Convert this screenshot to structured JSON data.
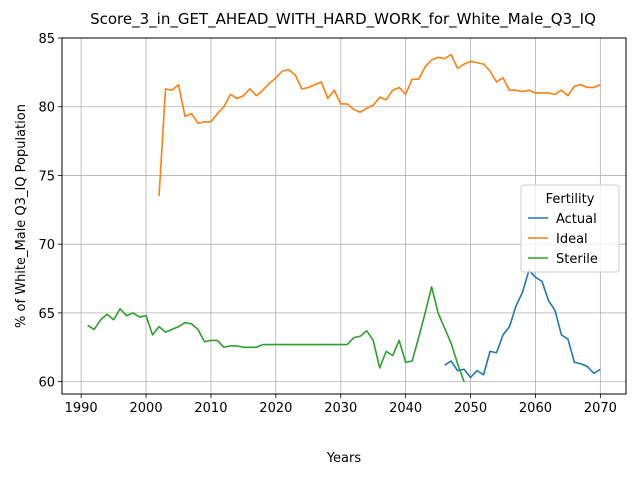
{
  "chart_data": {
    "type": "line",
    "title": "Score_3_in_GET_AHEAD_WITH_HARD_WORK_for_White_Male_Q3_IQ",
    "xlabel": "Years",
    "ylabel": "% of White_Male Q3_IQ Population",
    "xlim": [
      1987.05,
      2073.95
    ],
    "ylim": [
      59.1,
      85
    ],
    "xticks": [
      1990,
      2000,
      2010,
      2020,
      2030,
      2040,
      2050,
      2060,
      2070
    ],
    "yticks": [
      60,
      65,
      70,
      75,
      80,
      85
    ],
    "grid": true,
    "legend": {
      "title": "Fertility",
      "placement": "center-right"
    },
    "series": [
      {
        "name": "Actual",
        "color": "#1f77b4",
        "x": [
          2046,
          2047,
          2048,
          2049,
          2050,
          2051,
          2052,
          2053,
          2054,
          2055,
          2056,
          2057,
          2058,
          2059,
          2060,
          2061,
          2062,
          2063,
          2064,
          2065,
          2066,
          2067,
          2068,
          2069,
          2070
        ],
        "y": [
          61.2,
          61.5,
          60.8,
          60.9,
          60.3,
          60.8,
          60.5,
          62.2,
          62.1,
          63.4,
          64.0,
          65.5,
          66.5,
          68.1,
          67.6,
          67.3,
          65.9,
          65.2,
          63.4,
          63.1,
          61.4,
          61.3,
          61.1,
          60.6,
          60.9
        ]
      },
      {
        "name": "Ideal",
        "color": "#ff7f0e",
        "x": [
          2002,
          2003,
          2004,
          2005,
          2006,
          2007,
          2008,
          2009,
          2010,
          2011,
          2012,
          2013,
          2014,
          2015,
          2016,
          2017,
          2018,
          2019,
          2020,
          2021,
          2022,
          2023,
          2024,
          2025,
          2026,
          2027,
          2028,
          2029,
          2030,
          2031,
          2032,
          2033,
          2034,
          2035,
          2036,
          2037,
          2038,
          2039,
          2040,
          2041,
          2042,
          2043,
          2044,
          2045,
          2046,
          2047,
          2048,
          2049,
          2050,
          2051,
          2052,
          2053,
          2054,
          2055,
          2056,
          2057,
          2058,
          2059,
          2060,
          2061,
          2062,
          2063,
          2064,
          2065,
          2066,
          2067,
          2068,
          2069,
          2070
        ],
        "y": [
          73.5,
          81.3,
          81.2,
          81.6,
          79.3,
          79.5,
          78.8,
          78.9,
          78.9,
          79.5,
          80.0,
          80.9,
          80.6,
          80.8,
          81.3,
          80.8,
          81.2,
          81.7,
          82.1,
          82.6,
          82.7,
          82.3,
          81.3,
          81.4,
          81.6,
          81.8,
          80.6,
          81.2,
          80.2,
          80.2,
          79.8,
          79.6,
          79.9,
          80.1,
          80.7,
          80.5,
          81.2,
          81.4,
          80.9,
          82.0,
          82.0,
          82.9,
          83.4,
          83.6,
          83.5,
          83.8,
          82.8,
          83.1,
          83.3,
          83.2,
          83.1,
          82.6,
          81.8,
          82.1,
          81.2,
          81.2,
          81.1,
          81.2,
          81.0,
          81.0,
          81.0,
          80.9,
          81.2,
          80.8,
          81.5,
          81.6,
          81.4,
          81.4,
          81.6
        ]
      },
      {
        "name": "Sterile",
        "color": "#2ca02c",
        "x": [
          1991,
          1992,
          1993,
          1994,
          1995,
          1996,
          1997,
          1998,
          1999,
          2000,
          2001,
          2002,
          2003,
          2004,
          2005,
          2006,
          2007,
          2008,
          2009,
          2010,
          2011,
          2012,
          2013,
          2014,
          2015,
          2016,
          2017,
          2018,
          2019,
          2020,
          2021,
          2022,
          2023,
          2024,
          2025,
          2026,
          2027,
          2028,
          2029,
          2030,
          2031,
          2032,
          2033,
          2034,
          2035,
          2036,
          2037,
          2038,
          2039,
          2040,
          2041,
          2042,
          2043,
          2044,
          2045,
          2046,
          2047,
          2048,
          2049
        ],
        "y": [
          64.1,
          63.8,
          64.5,
          64.9,
          64.5,
          65.3,
          64.8,
          65.0,
          64.7,
          64.8,
          63.4,
          64.0,
          63.6,
          63.8,
          64.0,
          64.3,
          64.2,
          63.8,
          62.9,
          63.0,
          63.0,
          62.5,
          62.6,
          62.6,
          62.5,
          62.5,
          62.5,
          62.7,
          62.7,
          62.7,
          62.7,
          62.7,
          62.7,
          62.7,
          62.7,
          62.7,
          62.7,
          62.7,
          62.7,
          62.7,
          62.7,
          63.2,
          63.3,
          63.7,
          63.0,
          61.0,
          62.2,
          61.9,
          63.0,
          61.4,
          61.5,
          63.2,
          65.0,
          66.9,
          65.0,
          63.9,
          62.8,
          61.3,
          60.0
        ]
      }
    ]
  }
}
